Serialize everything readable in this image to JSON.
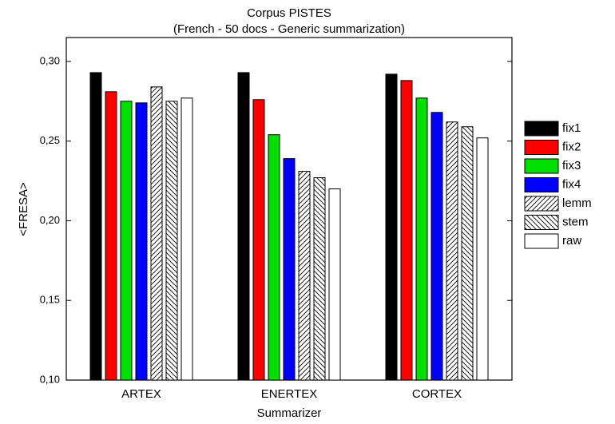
{
  "chart_data": {
    "type": "bar",
    "title": "Corpus PISTES",
    "subtitle": "(French - 50 docs - Generic summarization)",
    "x_label": "Summarizer",
    "y_label": "<FRESA>",
    "categories": [
      "ARTEX",
      "ENERTEX",
      "CORTEX"
    ],
    "series": [
      {
        "name": "fix1",
        "color": "#000000",
        "values": [
          0.293,
          0.293,
          0.292
        ]
      },
      {
        "name": "fix2",
        "color": "#ff0000",
        "values": [
          0.281,
          0.276,
          0.288
        ]
      },
      {
        "name": "fix3",
        "color": "#00e000",
        "values": [
          0.275,
          0.254,
          0.277
        ]
      },
      {
        "name": "fix4",
        "color": "#0000ff",
        "values": [
          0.274,
          0.239,
          0.268
        ]
      },
      {
        "name": "lemm",
        "color": "#ffffff",
        "pattern": "forward-hatch",
        "values": [
          0.284,
          0.231,
          0.262
        ]
      },
      {
        "name": "stem",
        "color": "#ffffff",
        "pattern": "back-hatch",
        "values": [
          0.275,
          0.227,
          0.259
        ]
      },
      {
        "name": "raw",
        "color": "#ffffff",
        "values": [
          0.277,
          0.22,
          0.252
        ]
      }
    ],
    "ylim": [
      0.1,
      0.315
    ],
    "yticks": [
      {
        "value": 0.1,
        "label": "0,10"
      },
      {
        "value": 0.15,
        "label": "0,15"
      },
      {
        "value": 0.2,
        "label": "0,20"
      },
      {
        "value": 0.25,
        "label": "0,25"
      },
      {
        "value": 0.3,
        "label": "0,30"
      }
    ],
    "legend": "right"
  }
}
